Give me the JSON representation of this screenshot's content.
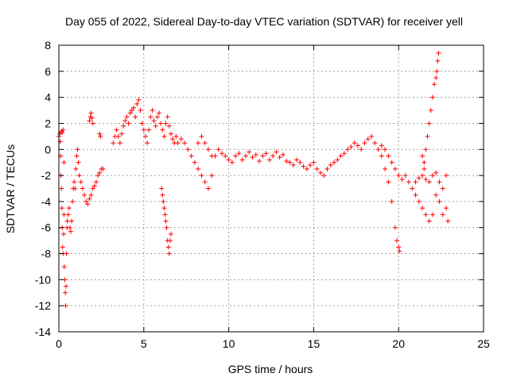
{
  "chart_data": {
    "type": "scatter",
    "title": "Day 055 of 2022, Sidereal Day-to-day VTEC variation (SDTVAR) for receiver yell",
    "xlabel": "GPS time / hours",
    "ylabel": "SDTVAR / TECUs",
    "xlim": [
      0,
      25
    ],
    "ylim": [
      -14,
      8
    ],
    "xticks": [
      0,
      5,
      10,
      15,
      20,
      25
    ],
    "yticks": [
      -14,
      -12,
      -10,
      -8,
      -6,
      -4,
      -2,
      0,
      2,
      4,
      6,
      8
    ],
    "xtick_labels": [
      "0",
      "5",
      "10",
      "15",
      "20",
      "25"
    ],
    "ytick_labels": [
      "-14",
      "-12",
      "-10",
      "-8",
      "-6",
      "-4",
      "-2",
      "0",
      "2",
      "4",
      "6",
      "8"
    ],
    "grid": true,
    "marker": "+",
    "color": "#ff0000",
    "series": [
      {
        "name": "SDTVAR",
        "points": [
          [
            0.0,
            1.0
          ],
          [
            0.05,
            1.2
          ],
          [
            0.08,
            0.6
          ],
          [
            0.1,
            -0.5
          ],
          [
            0.12,
            -2.0
          ],
          [
            0.15,
            -3.0
          ],
          [
            0.18,
            -4.5
          ],
          [
            0.2,
            -6.0
          ],
          [
            0.22,
            -7.5
          ],
          [
            0.25,
            -8.0
          ],
          [
            0.28,
            -6.5
          ],
          [
            0.3,
            -5.0
          ],
          [
            0.32,
            -9.0
          ],
          [
            0.35,
            -10.0
          ],
          [
            0.38,
            -11.0
          ],
          [
            0.4,
            -12.0
          ],
          [
            0.42,
            -10.5
          ],
          [
            0.45,
            -8.0
          ],
          [
            0.48,
            -6.0
          ],
          [
            0.5,
            -5.5
          ],
          [
            0.15,
            1.4
          ],
          [
            0.2,
            1.3
          ],
          [
            0.25,
            1.5
          ],
          [
            0.3,
            -1.0
          ],
          [
            0.55,
            -5.0
          ],
          [
            0.6,
            -4.5
          ],
          [
            0.65,
            -6.0
          ],
          [
            0.7,
            -6.3
          ],
          [
            0.75,
            -5.5
          ],
          [
            0.8,
            -4.0
          ],
          [
            0.85,
            -3.0
          ],
          [
            0.9,
            -2.5
          ],
          [
            0.95,
            -3.0
          ],
          [
            1.0,
            -1.5
          ],
          [
            1.05,
            -0.5
          ],
          [
            1.1,
            0.0
          ],
          [
            1.15,
            -1.0
          ],
          [
            1.2,
            -2.0
          ],
          [
            1.3,
            -2.5
          ],
          [
            1.4,
            -3.0
          ],
          [
            1.5,
            -3.5
          ],
          [
            1.6,
            -4.0
          ],
          [
            1.7,
            -4.2
          ],
          [
            1.8,
            -3.8
          ],
          [
            1.9,
            -3.5
          ],
          [
            2.0,
            -3.0
          ],
          [
            2.1,
            -2.8
          ],
          [
            2.2,
            -2.5
          ],
          [
            2.3,
            -2.0
          ],
          [
            2.4,
            -1.8
          ],
          [
            2.5,
            -1.5
          ],
          [
            2.6,
            -1.5
          ],
          [
            1.8,
            2.2
          ],
          [
            1.85,
            2.5
          ],
          [
            1.9,
            2.8
          ],
          [
            1.95,
            2.4
          ],
          [
            2.0,
            2.0
          ],
          [
            2.4,
            1.2
          ],
          [
            2.45,
            1.0
          ],
          [
            3.2,
            0.5
          ],
          [
            3.3,
            1.0
          ],
          [
            3.4,
            1.5
          ],
          [
            3.5,
            1.0
          ],
          [
            3.6,
            0.5
          ],
          [
            3.7,
            1.2
          ],
          [
            3.8,
            1.8
          ],
          [
            3.9,
            2.2
          ],
          [
            4.0,
            2.5
          ],
          [
            4.1,
            2.0
          ],
          [
            4.2,
            2.8
          ],
          [
            4.3,
            3.0
          ],
          [
            4.4,
            3.2
          ],
          [
            4.5,
            2.5
          ],
          [
            4.6,
            3.5
          ],
          [
            4.7,
            3.8
          ],
          [
            4.8,
            3.0
          ],
          [
            4.9,
            2.0
          ],
          [
            5.0,
            1.5
          ],
          [
            5.1,
            1.0
          ],
          [
            5.2,
            0.5
          ],
          [
            5.3,
            1.5
          ],
          [
            5.4,
            2.5
          ],
          [
            5.5,
            3.0
          ],
          [
            5.6,
            2.2
          ],
          [
            5.7,
            1.8
          ],
          [
            5.8,
            2.5
          ],
          [
            5.9,
            2.8
          ],
          [
            6.0,
            2.0
          ],
          [
            6.05,
            -3.0
          ],
          [
            6.1,
            -3.5
          ],
          [
            6.15,
            -4.0
          ],
          [
            6.2,
            -4.5
          ],
          [
            6.25,
            -5.0
          ],
          [
            6.3,
            -5.5
          ],
          [
            6.35,
            -6.0
          ],
          [
            6.4,
            -7.0
          ],
          [
            6.45,
            -7.5
          ],
          [
            6.5,
            -8.0
          ],
          [
            6.55,
            -7.0
          ],
          [
            6.6,
            -6.5
          ],
          [
            6.1,
            1.5
          ],
          [
            6.2,
            1.0
          ],
          [
            6.3,
            2.0
          ],
          [
            6.4,
            2.5
          ],
          [
            6.5,
            1.8
          ],
          [
            6.6,
            1.2
          ],
          [
            6.7,
            0.8
          ],
          [
            6.8,
            0.5
          ],
          [
            6.9,
            1.0
          ],
          [
            7.0,
            0.5
          ],
          [
            7.2,
            0.8
          ],
          [
            7.4,
            0.5
          ],
          [
            7.6,
            0.0
          ],
          [
            7.8,
            -0.5
          ],
          [
            8.0,
            -1.0
          ],
          [
            8.2,
            0.5
          ],
          [
            8.4,
            1.0
          ],
          [
            8.6,
            0.5
          ],
          [
            8.8,
            0.0
          ],
          [
            9.0,
            -0.5
          ],
          [
            8.2,
            -1.5
          ],
          [
            8.4,
            -2.0
          ],
          [
            8.6,
            -2.5
          ],
          [
            8.8,
            -3.0
          ],
          [
            9.0,
            -2.0
          ],
          [
            9.2,
            -0.5
          ],
          [
            9.4,
            0.0
          ],
          [
            9.6,
            -0.3
          ],
          [
            9.8,
            -0.5
          ],
          [
            10.0,
            -0.8
          ],
          [
            10.2,
            -1.0
          ],
          [
            10.4,
            -0.5
          ],
          [
            10.6,
            -0.3
          ],
          [
            10.8,
            -0.8
          ],
          [
            11.0,
            -0.5
          ],
          [
            11.2,
            -0.2
          ],
          [
            11.4,
            -0.6
          ],
          [
            11.6,
            -0.4
          ],
          [
            11.8,
            -0.9
          ],
          [
            12.0,
            -0.5
          ],
          [
            12.2,
            -0.3
          ],
          [
            12.4,
            -0.8
          ],
          [
            12.6,
            -0.5
          ],
          [
            12.8,
            -0.2
          ],
          [
            13.0,
            -0.6
          ],
          [
            13.2,
            -0.4
          ],
          [
            13.4,
            -0.9
          ],
          [
            13.6,
            -1.0
          ],
          [
            13.8,
            -1.2
          ],
          [
            14.0,
            -0.8
          ],
          [
            14.2,
            -1.0
          ],
          [
            14.4,
            -1.3
          ],
          [
            14.6,
            -1.5
          ],
          [
            14.8,
            -1.2
          ],
          [
            15.0,
            -1.0
          ],
          [
            15.2,
            -1.5
          ],
          [
            15.4,
            -1.8
          ],
          [
            15.6,
            -2.0
          ],
          [
            15.8,
            -1.5
          ],
          [
            16.0,
            -1.2
          ],
          [
            16.2,
            -1.0
          ],
          [
            16.4,
            -0.8
          ],
          [
            16.6,
            -0.5
          ],
          [
            16.8,
            -0.3
          ],
          [
            17.0,
            0.0
          ],
          [
            17.2,
            0.2
          ],
          [
            17.4,
            0.5
          ],
          [
            17.6,
            0.3
          ],
          [
            17.8,
            0.0
          ],
          [
            18.0,
            0.5
          ],
          [
            18.2,
            0.8
          ],
          [
            18.4,
            1.0
          ],
          [
            18.6,
            0.5
          ],
          [
            18.8,
            0.0
          ],
          [
            19.0,
            -0.5
          ],
          [
            19.2,
            -1.5
          ],
          [
            19.4,
            -2.5
          ],
          [
            19.6,
            -4.0
          ],
          [
            19.8,
            -6.0
          ],
          [
            19.9,
            -7.0
          ],
          [
            20.0,
            -7.5
          ],
          [
            20.05,
            -7.8
          ],
          [
            19.0,
            0.3
          ],
          [
            19.2,
            0.0
          ],
          [
            19.4,
            -0.5
          ],
          [
            19.6,
            -1.0
          ],
          [
            19.8,
            -1.5
          ],
          [
            20.0,
            -2.0
          ],
          [
            20.2,
            -2.3
          ],
          [
            20.4,
            -2.0
          ],
          [
            20.6,
            -2.5
          ],
          [
            20.8,
            -3.0
          ],
          [
            21.0,
            -3.5
          ],
          [
            21.2,
            -4.0
          ],
          [
            21.4,
            -4.5
          ],
          [
            21.6,
            -5.0
          ],
          [
            21.8,
            -5.5
          ],
          [
            22.0,
            -5.0
          ],
          [
            21.0,
            -2.5
          ],
          [
            21.2,
            -2.2
          ],
          [
            21.4,
            -2.0
          ],
          [
            21.6,
            -2.3
          ],
          [
            21.8,
            -2.5
          ],
          [
            22.0,
            -2.0
          ],
          [
            22.2,
            -1.8
          ],
          [
            22.4,
            -2.5
          ],
          [
            22.6,
            -3.0
          ],
          [
            22.8,
            -2.0
          ],
          [
            22.2,
            -3.5
          ],
          [
            22.4,
            -4.0
          ],
          [
            22.6,
            -5.0
          ],
          [
            22.8,
            -4.5
          ],
          [
            22.9,
            -5.5
          ],
          [
            21.5,
            -1.0
          ],
          [
            21.6,
            0.0
          ],
          [
            21.7,
            1.0
          ],
          [
            21.8,
            2.0
          ],
          [
            21.9,
            3.0
          ],
          [
            22.0,
            4.0
          ],
          [
            22.1,
            5.0
          ],
          [
            22.2,
            5.5
          ],
          [
            22.25,
            6.0
          ],
          [
            22.3,
            6.8
          ],
          [
            22.35,
            7.4
          ],
          [
            21.4,
            -0.5
          ],
          [
            21.5,
            -1.5
          ]
        ]
      }
    ]
  }
}
